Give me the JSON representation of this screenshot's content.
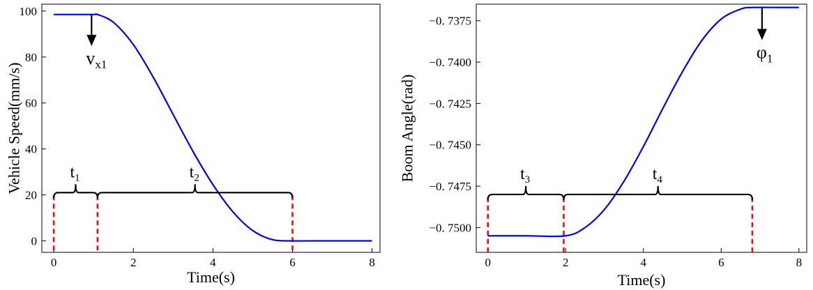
{
  "chart_data": [
    {
      "type": "line",
      "xlabel": "Time(s)",
      "ylabel": "Vehicle Speed(mm/s)",
      "xlim": [
        -0.3,
        8.2
      ],
      "ylim": [
        -5,
        103
      ],
      "xticks": [
        0,
        2,
        4,
        6,
        8
      ],
      "xtick_labels": [
        "0",
        "2",
        "4",
        "6",
        "8"
      ],
      "yticks": [
        0,
        20,
        40,
        60,
        80,
        100
      ],
      "ytick_labels": [
        "0",
        "20",
        "40",
        "60",
        "80",
        "100"
      ],
      "grid": false,
      "series": [
        {
          "color": "#0000ff",
          "x": [
            0,
            0.5,
            1.0,
            1.1,
            1.5,
            2.0,
            2.5,
            3.0,
            3.5,
            4.0,
            4.5,
            5.0,
            5.5,
            6.0,
            6.5,
            7.0,
            7.5,
            8.0
          ],
          "y": [
            98.5,
            98.5,
            98.5,
            98.5,
            95.1,
            85.4,
            71.2,
            55.0,
            38.9,
            24.5,
            12.7,
            4.5,
            0.5,
            0,
            0,
            0,
            0,
            0
          ]
        }
      ],
      "vlines": {
        "x": [
          0,
          1.1,
          6.0
        ],
        "color": "#ff0000",
        "style": "dashed"
      },
      "intervals": [
        {
          "label": "t",
          "sub": "1",
          "from": 0,
          "to": 1.1,
          "level": 21
        },
        {
          "label": "t",
          "sub": "2",
          "from": 1.1,
          "to": 6.0,
          "level": 21
        }
      ],
      "arrow_annotation": {
        "label": "v",
        "sub": "x1",
        "x": 0.95,
        "y_from": 98.5,
        "y_to": 86
      }
    },
    {
      "type": "line",
      "xlabel": "Time(s)",
      "ylabel": "Boom Angle(rad)",
      "xlim": [
        -0.3,
        8.2
      ],
      "ylim": [
        -0.7515,
        -0.7365
      ],
      "xticks": [
        0,
        2,
        4,
        6,
        8
      ],
      "xtick_labels": [
        "0",
        "2",
        "4",
        "6",
        "8"
      ],
      "yticks": [
        -0.7375,
        -0.74,
        -0.7425,
        -0.745,
        -0.7475,
        -0.75
      ],
      "ytick_labels": [
        "−0. 7375",
        "−0. 7400",
        "−0. 7425",
        "−0. 7450",
        "−0. 7475",
        "−0. 7500"
      ],
      "grid": false,
      "series": [
        {
          "color": "#0000ff",
          "x": [
            0,
            1.0,
            2.0,
            2.5,
            3.0,
            3.5,
            4.0,
            4.5,
            5.0,
            5.5,
            6.0,
            6.5,
            6.8,
            7.5,
            8.0
          ],
          "y": [
            -0.7505,
            -0.7505,
            -0.7505,
            -0.75,
            -0.7489,
            -0.7472,
            -0.7451,
            -0.7428,
            -0.7406,
            -0.7387,
            -0.7374,
            -0.7368,
            -0.7367,
            -0.7367,
            -0.7367
          ]
        }
      ],
      "vlines": {
        "x": [
          0,
          1.95,
          6.8
        ],
        "color": "#ff0000",
        "style": "dashed"
      },
      "intervals": [
        {
          "label": "t",
          "sub": "3",
          "from": 0,
          "to": 1.95,
          "level": -0.748
        },
        {
          "label": "t",
          "sub": "4",
          "from": 1.95,
          "to": 6.8,
          "level": -0.748
        }
      ],
      "arrow_annotation": {
        "label": "φ",
        "sub": "1",
        "x": 7.05,
        "y_from": -0.7367,
        "y_to": -0.7385
      }
    }
  ]
}
